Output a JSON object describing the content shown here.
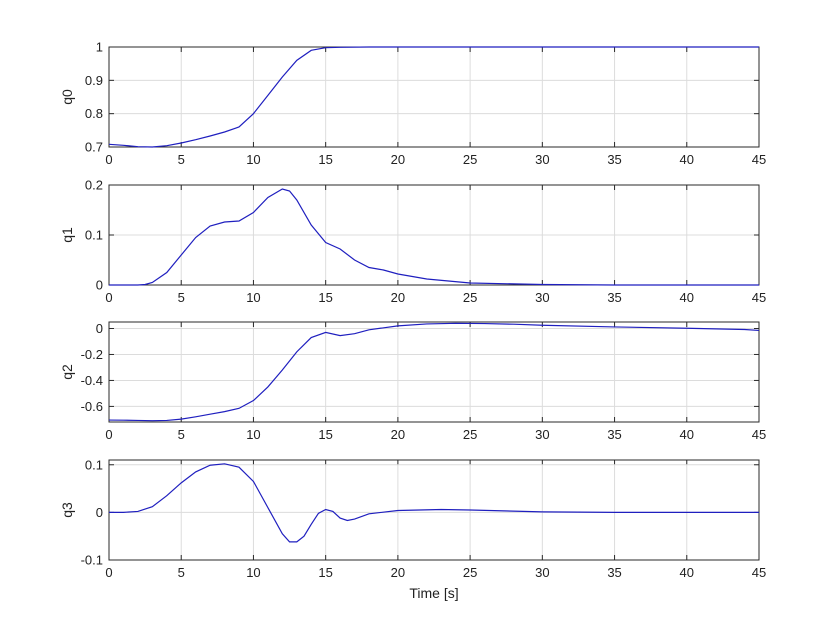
{
  "chart_data": [
    {
      "type": "line",
      "ylabel": "q0",
      "xlabel": "",
      "xlim": [
        0,
        45
      ],
      "ylim": [
        0.7,
        1
      ],
      "xticks": [
        "0",
        "5",
        "10",
        "15",
        "20",
        "25",
        "30",
        "35",
        "40",
        "45"
      ],
      "yticks": [
        "0.7",
        "0.8",
        "0.9",
        "1"
      ],
      "yvals": [
        0.7,
        0.8,
        0.9,
        1
      ],
      "grid": true,
      "series": [
        {
          "color": "#1f1fbf",
          "x": [
            0,
            1,
            2,
            3,
            4,
            5,
            6,
            7,
            8,
            9,
            10,
            11,
            12,
            13,
            14,
            15,
            16,
            18,
            20,
            25,
            30,
            35,
            40,
            45
          ],
          "y": [
            0.708,
            0.705,
            0.701,
            0.7,
            0.704,
            0.712,
            0.722,
            0.733,
            0.745,
            0.76,
            0.8,
            0.855,
            0.91,
            0.96,
            0.99,
            0.998,
            0.999,
            1,
            1,
            1,
            1,
            1,
            1,
            1
          ]
        }
      ]
    },
    {
      "type": "line",
      "ylabel": "q1",
      "xlabel": "",
      "xlim": [
        0,
        45
      ],
      "ylim": [
        0,
        0.2
      ],
      "xticks": [
        "0",
        "5",
        "10",
        "15",
        "20",
        "25",
        "30",
        "35",
        "40",
        "45"
      ],
      "yticks": [
        "0",
        "0.1",
        "0.2"
      ],
      "yvals": [
        0,
        0.1,
        0.2
      ],
      "grid": true,
      "series": [
        {
          "color": "#1f1fbf",
          "x": [
            0,
            1,
            2,
            2.5,
            3,
            4,
            5,
            6,
            7,
            8,
            9,
            10,
            11,
            12,
            12.5,
            13,
            14,
            15,
            16,
            17,
            18,
            19,
            20,
            22,
            25,
            30,
            35,
            40,
            45
          ],
          "y": [
            0,
            0,
            0,
            0.001,
            0.005,
            0.025,
            0.06,
            0.095,
            0.118,
            0.126,
            0.128,
            0.145,
            0.175,
            0.192,
            0.188,
            0.17,
            0.12,
            0.085,
            0.072,
            0.05,
            0.035,
            0.03,
            0.022,
            0.012,
            0.004,
            0.001,
            0,
            0,
            0
          ]
        }
      ]
    },
    {
      "type": "line",
      "ylabel": "q2",
      "xlabel": "",
      "xlim": [
        0,
        45
      ],
      "ylim": [
        -0.72,
        0.05
      ],
      "xticks": [
        "0",
        "5",
        "10",
        "15",
        "20",
        "25",
        "30",
        "35",
        "40",
        "45"
      ],
      "yticks": [
        "0",
        "-0.2",
        "-0.4",
        "-0.6"
      ],
      "yvals": [
        0,
        -0.2,
        -0.4,
        -0.6
      ],
      "grid": true,
      "series": [
        {
          "color": "#1f1fbf",
          "x": [
            0,
            1,
            2,
            3,
            4,
            5,
            6,
            7,
            8,
            9,
            10,
            11,
            12,
            13,
            14,
            15,
            16,
            17,
            18,
            20,
            22,
            24,
            26,
            28,
            30,
            35,
            40,
            44,
            45
          ],
          "y": [
            -0.705,
            -0.706,
            -0.708,
            -0.71,
            -0.708,
            -0.698,
            -0.68,
            -0.66,
            -0.64,
            -0.615,
            -0.555,
            -0.45,
            -0.32,
            -0.18,
            -0.07,
            -0.03,
            -0.055,
            -0.04,
            -0.01,
            0.02,
            0.035,
            0.04,
            0.038,
            0.033,
            0.025,
            0.012,
            0.002,
            -0.008,
            -0.015
          ]
        }
      ]
    },
    {
      "type": "line",
      "ylabel": "q3",
      "xlabel": "Time [s]",
      "xlim": [
        0,
        45
      ],
      "ylim": [
        -0.1,
        0.11
      ],
      "xticks": [
        "0",
        "5",
        "10",
        "15",
        "20",
        "25",
        "30",
        "35",
        "40",
        "45"
      ],
      "yticks": [
        "0.1",
        "0",
        "-0.1"
      ],
      "yvals": [
        0.1,
        0,
        -0.1
      ],
      "grid": true,
      "series": [
        {
          "color": "#1f1fbf",
          "x": [
            0,
            1,
            2,
            3,
            4,
            5,
            6,
            7,
            8,
            9,
            10,
            11,
            12,
            12.5,
            13,
            13.5,
            14,
            14.5,
            15,
            15.5,
            16,
            16.5,
            17,
            18,
            20,
            23,
            25,
            30,
            35,
            40,
            45
          ],
          "y": [
            0,
            0,
            0.002,
            0.012,
            0.035,
            0.062,
            0.085,
            0.099,
            0.102,
            0.095,
            0.065,
            0.01,
            -0.045,
            -0.062,
            -0.062,
            -0.05,
            -0.025,
            -0.002,
            0.006,
            0.002,
            -0.012,
            -0.017,
            -0.014,
            -0.003,
            0.004,
            0.006,
            0.005,
            0.001,
            0,
            0,
            0
          ]
        }
      ]
    }
  ]
}
